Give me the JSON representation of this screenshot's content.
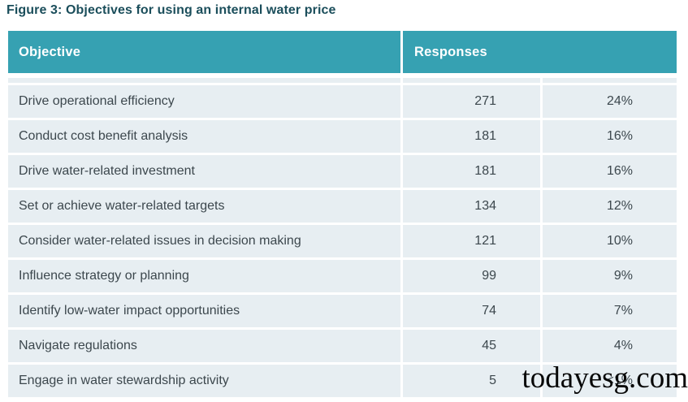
{
  "figure": {
    "title": "Figure 3: Objectives for using an internal water price"
  },
  "table": {
    "header": {
      "objective": "Objective",
      "responses": "Responses"
    },
    "rows": [
      {
        "objective": "Drive operational efficiency",
        "count": "271",
        "percent": "24%"
      },
      {
        "objective": "Conduct cost benefit analysis",
        "count": "181",
        "percent": "16%"
      },
      {
        "objective": "Drive water-related investment",
        "count": "181",
        "percent": "16%"
      },
      {
        "objective": "Set or achieve water-related targets",
        "count": "134",
        "percent": "12%"
      },
      {
        "objective": "Consider water-related issues in decision making",
        "count": "121",
        "percent": "10%"
      },
      {
        "objective": "Influence strategy or planning",
        "count": "99",
        "percent": "9%"
      },
      {
        "objective": "Identify low-water impact opportunities",
        "count": "74",
        "percent": "7%"
      },
      {
        "objective": "Navigate regulations",
        "count": "45",
        "percent": "4%"
      },
      {
        "objective": "Engage in water stewardship activity",
        "count": "5",
        "percent": "<1%"
      }
    ]
  },
  "watermark": "todayesg.com",
  "colors": {
    "header_bg": "#36a1b2",
    "row_bg": "#e7eef2",
    "title_text": "#1b4e5b",
    "cell_text": "#3c474d"
  },
  "chart_data": {
    "type": "table",
    "title": "Figure 3: Objectives for using an internal water price",
    "columns": [
      "Objective",
      "Responses (count)",
      "Responses (%)"
    ],
    "categories": [
      "Drive operational efficiency",
      "Conduct cost benefit analysis",
      "Drive water-related investment",
      "Set or achieve water-related targets",
      "Consider water-related issues in decision making",
      "Influence strategy or planning",
      "Identify low-water impact opportunities",
      "Navigate regulations",
      "Engage in water stewardship activity"
    ],
    "series": [
      {
        "name": "Responses",
        "values": [
          271,
          181,
          181,
          134,
          121,
          99,
          74,
          45,
          5
        ]
      },
      {
        "name": "Percentage",
        "values": [
          "24%",
          "16%",
          "16%",
          "12%",
          "10%",
          "9%",
          "7%",
          "4%",
          "<1%"
        ]
      }
    ]
  }
}
